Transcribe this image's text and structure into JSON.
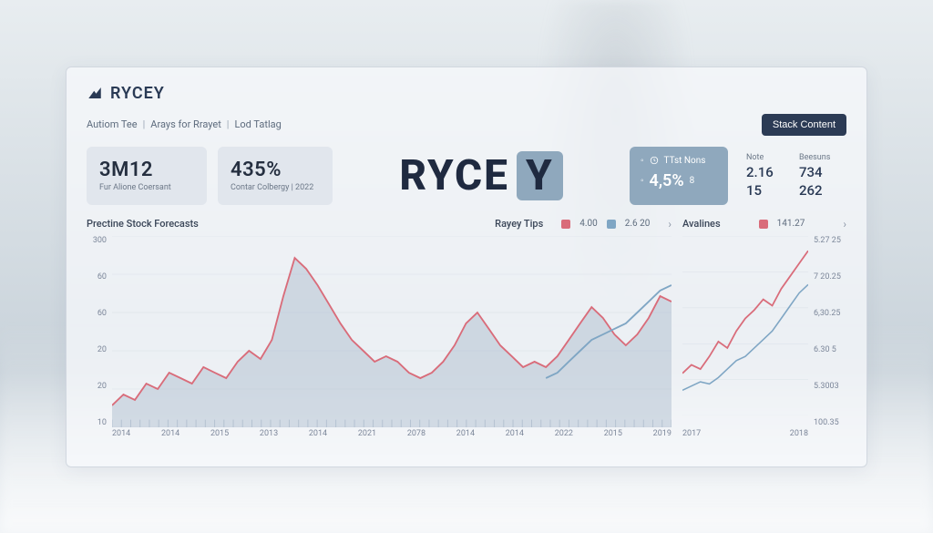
{
  "brand": "RYCEY",
  "breadcrumb": [
    "Autiom Tee",
    "Arays for Rrayet",
    "Lod Tatlag"
  ],
  "cta_label": "Stack Content",
  "stats": {
    "a": {
      "value": "3M12",
      "sub": "Fur Alione Coersant"
    },
    "b": {
      "value": "435%",
      "sub": "Contar Colbergy | 2022"
    }
  },
  "big_logo": {
    "text": "RYCE",
    "suffix": "Y"
  },
  "info": {
    "line1_label": "TTst Nons",
    "line2_value": "4,5%",
    "line2_suffix": "8"
  },
  "table": {
    "headers": [
      "Note",
      "Beesuns"
    ],
    "rows": [
      [
        "2.16",
        "734"
      ],
      [
        "15",
        "262"
      ]
    ]
  },
  "main_chart": {
    "title": "Prectine Stock Forecasts",
    "type": "area+line",
    "legend": [
      {
        "label": "4.00",
        "color": "#d96c7a"
      },
      {
        "label": "2.6 20",
        "color": "#7fa6c4"
      }
    ],
    "ylim": [
      10,
      300
    ],
    "yticks": [
      "300",
      "60",
      "60",
      "20",
      "20",
      "10"
    ],
    "xticks": [
      "2014",
      "2014",
      "2015",
      "2013",
      "2014",
      "2021",
      "2078",
      "2014",
      "2014",
      "2022",
      "2015",
      "2019"
    ],
    "grid_color": "#c6d0db",
    "background": "rgba(255,255,255,0)",
    "series_red": {
      "color": "#d96c7a",
      "fill": "rgba(148,170,192,0.35)",
      "points": [
        18,
        22,
        20,
        26,
        24,
        30,
        28,
        26,
        32,
        30,
        28,
        34,
        38,
        35,
        42,
        58,
        72,
        68,
        62,
        55,
        48,
        42,
        38,
        34,
        36,
        34,
        30,
        28,
        30,
        34,
        40,
        48,
        52,
        46,
        40,
        36,
        32,
        34,
        32,
        36,
        42,
        48,
        54,
        50,
        44,
        40,
        44,
        50,
        58,
        56
      ]
    },
    "series_blue": {
      "color": "#7fa6c4",
      "points": [
        null,
        null,
        null,
        null,
        null,
        null,
        null,
        null,
        null,
        null,
        null,
        null,
        null,
        null,
        null,
        null,
        null,
        null,
        null,
        null,
        null,
        null,
        null,
        null,
        null,
        null,
        null,
        null,
        null,
        null,
        null,
        null,
        null,
        null,
        null,
        null,
        null,
        null,
        28,
        30,
        34,
        38,
        42,
        44,
        46,
        48,
        52,
        56,
        60,
        62
      ]
    }
  },
  "tips": {
    "title": "Rayey Tips",
    "chevron": "›"
  },
  "side_chart": {
    "title": "Avalines",
    "type": "line",
    "legend": [
      {
        "label": "141.27",
        "color": "#d96c7a"
      }
    ],
    "yticks": [
      "5.27 25",
      "7 20.25",
      "6,30.25",
      "6.30 5",
      "5.3003",
      "100.35"
    ],
    "xticks": [
      "2017",
      "2018"
    ],
    "series_red": {
      "color": "#d96c7a",
      "points": [
        20,
        24,
        22,
        28,
        35,
        32,
        40,
        46,
        50,
        55,
        52,
        60,
        66,
        72,
        78
      ]
    },
    "series_blue": {
      "color": "#7fa6c4",
      "points": [
        12,
        14,
        16,
        15,
        18,
        22,
        26,
        28,
        32,
        36,
        40,
        46,
        52,
        58,
        62
      ]
    }
  },
  "colors": {
    "brand_text": "#2a3a55",
    "card_bg": "rgba(248,250,252,0.72)",
    "cta_bg": "#2c3b55",
    "info_bg": "#8fa8bd"
  }
}
